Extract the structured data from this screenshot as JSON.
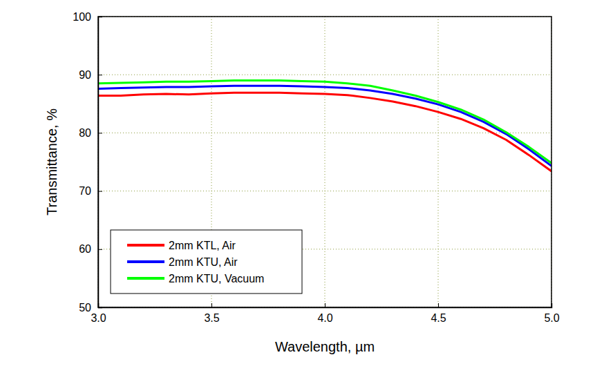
{
  "chart_data": {
    "type": "line",
    "x_label": "Wavelength, µm",
    "y_label": "Transmittance, %",
    "x": [
      3.0,
      3.1,
      3.2,
      3.3,
      3.4,
      3.5,
      3.6,
      3.7,
      3.8,
      3.9,
      4.0,
      4.1,
      4.2,
      4.3,
      4.4,
      4.5,
      4.6,
      4.7,
      4.8,
      4.9,
      5.0
    ],
    "series": [
      {
        "name": "2mm KTL, Air",
        "color": "#ff0000",
        "values": [
          86.4,
          86.4,
          86.6,
          86.7,
          86.6,
          86.8,
          86.9,
          86.9,
          86.9,
          86.8,
          86.7,
          86.5,
          86.0,
          85.4,
          84.6,
          83.6,
          82.4,
          80.8,
          78.8,
          76.2,
          73.4
        ]
      },
      {
        "name": "2mm KTU, Air",
        "color": "#0000ff",
        "values": [
          87.6,
          87.7,
          87.8,
          87.9,
          87.9,
          88.0,
          88.1,
          88.1,
          88.1,
          88.0,
          87.9,
          87.7,
          87.3,
          86.7,
          85.9,
          84.9,
          83.6,
          81.9,
          79.8,
          77.2,
          74.3
        ]
      },
      {
        "name": "2mm KTU, Vacuum",
        "color": "#00ff00",
        "values": [
          88.5,
          88.6,
          88.7,
          88.8,
          88.8,
          88.9,
          89.0,
          89.0,
          89.0,
          88.9,
          88.8,
          88.5,
          88.1,
          87.3,
          86.4,
          85.3,
          84.0,
          82.3,
          80.1,
          77.6,
          74.8
        ]
      }
    ],
    "xlim": [
      3.0,
      5.0
    ],
    "xticks": [
      {
        "value": 3.0,
        "label": "3.0"
      },
      {
        "value": 3.5,
        "label": "3.5"
      },
      {
        "value": 4.0,
        "label": "4.0"
      },
      {
        "value": 4.5,
        "label": "4.5"
      },
      {
        "value": 5.0,
        "label": "5.0"
      }
    ],
    "ylim": [
      50,
      100
    ],
    "yticks": [
      50,
      60,
      70,
      80,
      90,
      100
    ],
    "grid": true,
    "legend": "lower left"
  }
}
